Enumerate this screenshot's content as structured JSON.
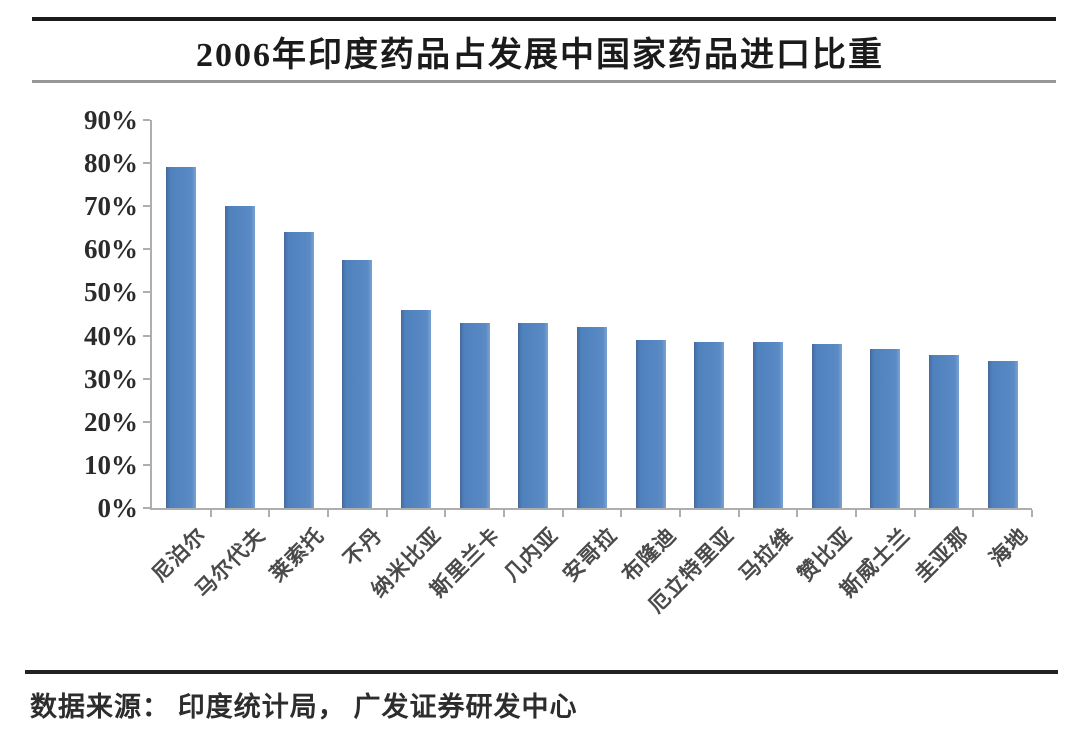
{
  "header": {
    "title": "2006年印度药品占发展中国家药品进口比重"
  },
  "footer": {
    "source_text": "数据来源： 印度统计局， 广发证券研发中心"
  },
  "colors": {
    "bar": "#4E81BD",
    "axis": "#AEAEAE",
    "rule_dark": "#1C1C1C",
    "rule_gray": "#979797",
    "text": "#1B1B1B"
  },
  "chart_data": {
    "type": "bar",
    "title": "2006年印度药品占发展中国家药品进口比重",
    "categories": [
      "尼泊尔",
      "马尔代夫",
      "莱索托",
      "不丹",
      "纳米比亚",
      "斯里兰卡",
      "几内亚",
      "安哥拉",
      "布隆迪",
      "厄立特里亚",
      "马拉维",
      "赞比亚",
      "斯威士兰",
      "圭亚那",
      "海地"
    ],
    "values": [
      79,
      70,
      64,
      57.5,
      46,
      43,
      43,
      42,
      39,
      38.5,
      38.5,
      38,
      37,
      35.5,
      34
    ],
    "unit": "%",
    "xlabel": "",
    "ylabel": "",
    "ylim": [
      0,
      90
    ],
    "ytick_step": 10,
    "ytick_labels": [
      "90%",
      "80%",
      "70%",
      "60%",
      "50%",
      "40%",
      "30%",
      "20%",
      "10%",
      "0%"
    ],
    "grid": false,
    "legend_position": "none",
    "bar_orientation": "vertical",
    "xlabel_rotation_deg": -45
  }
}
